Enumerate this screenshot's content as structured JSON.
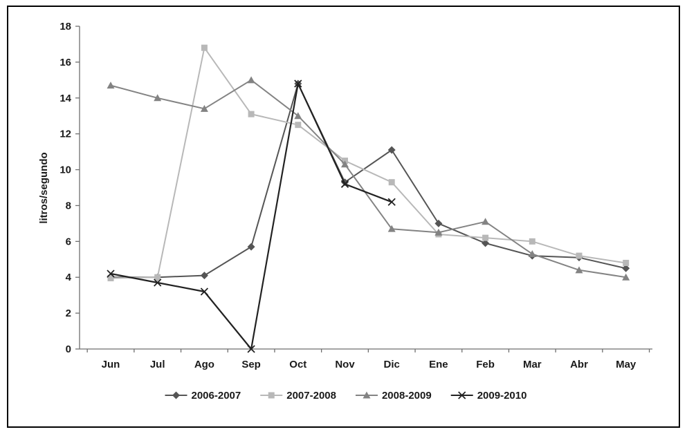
{
  "chart_data": {
    "type": "line",
    "title": "",
    "xlabel": "",
    "ylabel": "litros/segundo",
    "ylim": [
      0,
      18
    ],
    "ytick_step": 2,
    "grid": false,
    "legend_position": "bottom",
    "categories": [
      "Jun",
      "Jul",
      "Ago",
      "Sep",
      "Oct",
      "Nov",
      "Dic",
      "Ene",
      "Feb",
      "Mar",
      "Abr",
      "May"
    ],
    "series": [
      {
        "name": "2006-2007",
        "marker": "diamond",
        "color": "#555555",
        "values": [
          4.0,
          4.0,
          4.1,
          5.7,
          14.8,
          9.3,
          11.1,
          7.0,
          5.9,
          5.2,
          5.1,
          4.5
        ]
      },
      {
        "name": "2007-2008",
        "marker": "square",
        "color": "#b8b8b8",
        "values": [
          3.95,
          4.0,
          16.8,
          13.1,
          12.5,
          10.5,
          9.3,
          6.4,
          6.2,
          6.0,
          5.2,
          4.8
        ]
      },
      {
        "name": "2008-2009",
        "marker": "triangle",
        "color": "#838383",
        "values": [
          14.7,
          14.0,
          13.4,
          15.0,
          13.0,
          10.3,
          6.7,
          6.5,
          7.1,
          5.3,
          4.4,
          4.0
        ]
      },
      {
        "name": "2009-2010",
        "marker": "x",
        "color": "#222222",
        "values": [
          4.2,
          3.7,
          3.2,
          0.0,
          14.8,
          9.2,
          8.2,
          null,
          null,
          null,
          null,
          null
        ]
      }
    ]
  }
}
